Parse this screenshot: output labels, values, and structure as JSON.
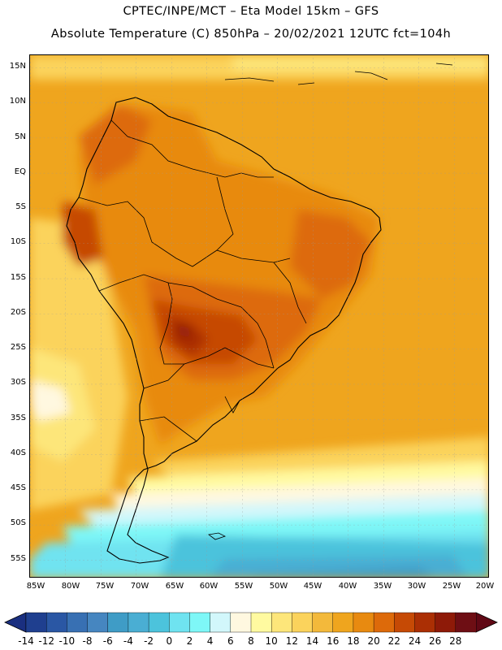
{
  "title_line1": "CPTEC/INPE/MCT –  Eta Model 15km – GFS",
  "title_line2": "Absolute Temperature (C) 850hPa – 20/02/2021 12UTC fct=104h",
  "lat_labels": [
    "15N",
    "10N",
    "5N",
    "EQ",
    "5S",
    "10S",
    "15S",
    "20S",
    "25S",
    "30S",
    "35S",
    "40S",
    "45S",
    "50S",
    "55S"
  ],
  "lon_labels": [
    "85W",
    "80W",
    "75W",
    "70W",
    "65W",
    "60W",
    "55W",
    "50W",
    "45W",
    "40W",
    "35W",
    "30W",
    "25W",
    "20W"
  ],
  "colorbar": {
    "labels": [
      "-14",
      "-12",
      "-10",
      "-8",
      "-6",
      "-4",
      "-2",
      "0",
      "2",
      "4",
      "6",
      "8",
      "10",
      "12",
      "14",
      "16",
      "18",
      "20",
      "22",
      "24",
      "26",
      "28"
    ],
    "colors": [
      "#1f3f8f",
      "#2a57a4",
      "#3870b3",
      "#4686c0",
      "#3f9cc6",
      "#4aaed3",
      "#4cc3dc",
      "#6fe3f0",
      "#7ef7f7",
      "#d2f7fb",
      "#fff8e0",
      "#fffaa0",
      "#fde67a",
      "#fbd35c",
      "#f3b93b",
      "#efa51e",
      "#e88a10",
      "#dd6a0a",
      "#c64a05",
      "#ab2f04",
      "#8e1a08",
      "#6e0e14"
    ]
  },
  "legend_colors": {
    "cold_end": "#1a2f80",
    "hot_end": "#600815"
  }
}
